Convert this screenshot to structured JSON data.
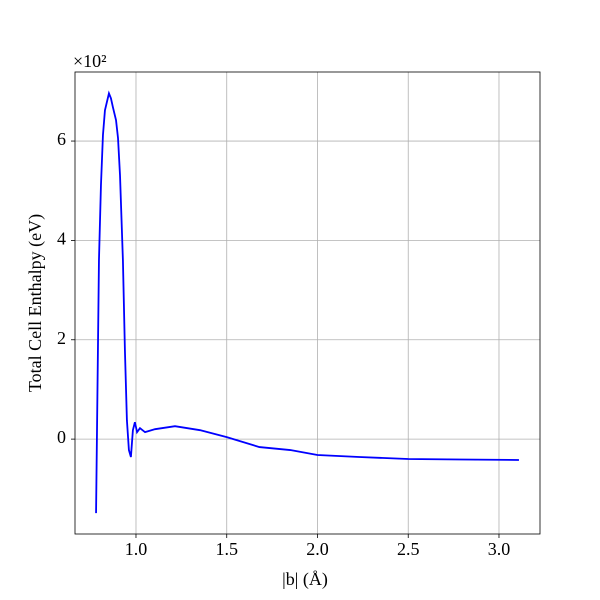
{
  "chart_data": {
    "type": "line",
    "xlabel": "|b| (Å)",
    "ylabel": "Total Cell Enthalpy (eV)",
    "offset_text": "×10²",
    "x": [
      0.78,
      0.796,
      0.807,
      0.818,
      0.829,
      0.851,
      0.862,
      0.873,
      0.89,
      0.901,
      0.912,
      0.928,
      0.939,
      0.95,
      0.961,
      0.972,
      0.983,
      0.994,
      1.006,
      1.022,
      1.05,
      1.105,
      1.215,
      1.353,
      1.5,
      1.68,
      1.85,
      2.0,
      2.23,
      2.5,
      2.79,
      3.11
    ],
    "series": [
      {
        "color": "#0000ff",
        "values": [
          -1.49,
          3.6,
          5.11,
          6.12,
          6.62,
          6.96,
          6.86,
          6.68,
          6.42,
          6.06,
          5.31,
          3.6,
          1.79,
          0.38,
          -0.22,
          -0.36,
          0.18,
          0.34,
          0.14,
          0.22,
          0.14,
          0.2,
          0.26,
          0.18,
          0.04,
          -0.16,
          -0.22,
          -0.32,
          -0.36,
          -0.4,
          -0.41,
          -0.42
        ]
      }
    ],
    "xlim": [
      0.664,
      3.226
    ],
    "ylim": [
      -1.91,
      7.39
    ],
    "xticks": [
      {
        "value": 1,
        "label": "1.0"
      },
      1.5,
      {
        "value": 2,
        "label": "2.0"
      },
      2.5,
      {
        "value": 3,
        "label": "3.0"
      }
    ],
    "yticks": [
      0,
      2,
      4,
      6
    ],
    "grid": true
  }
}
